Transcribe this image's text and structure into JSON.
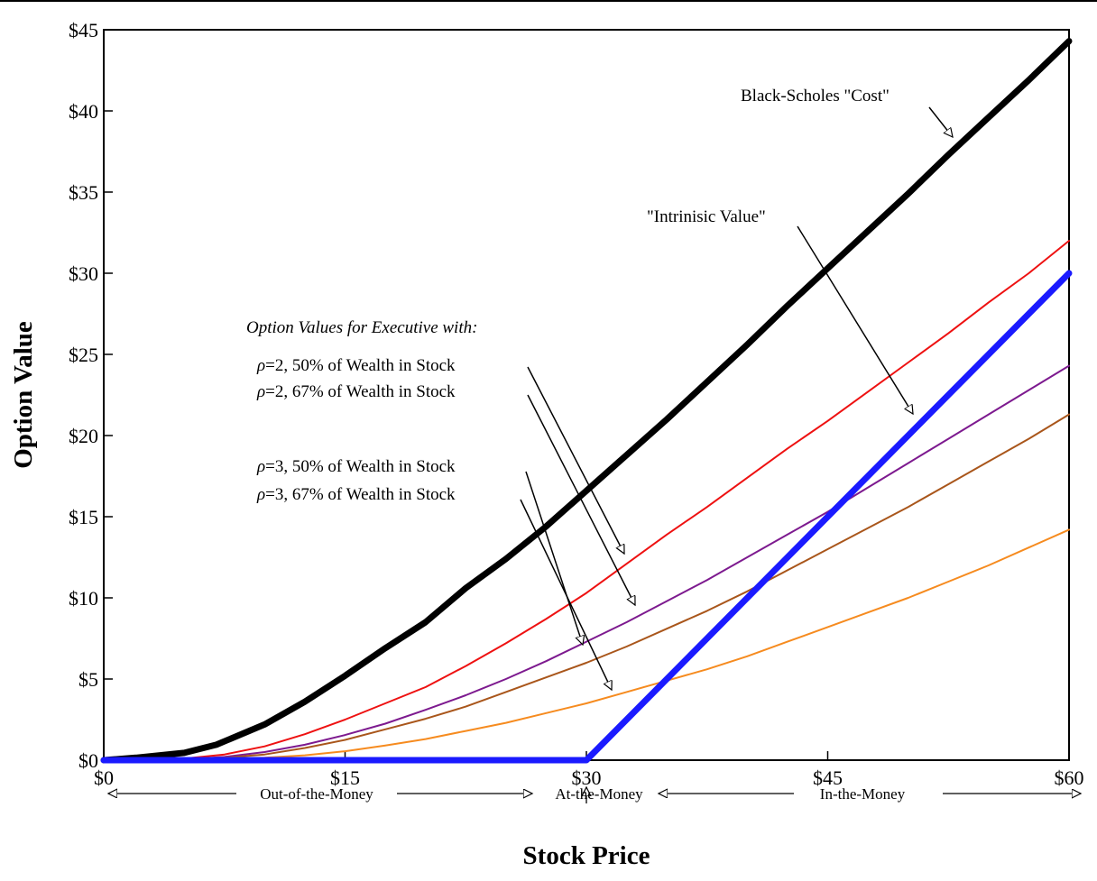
{
  "chart_data": {
    "type": "line",
    "xlabel": "Stock Price",
    "ylabel": "Option Value",
    "xlim": [
      0,
      60
    ],
    "ylim": [
      0,
      45
    ],
    "x_ticks": [
      0,
      15,
      30,
      45,
      60
    ],
    "x_tick_labels": [
      "$0",
      "$15",
      "$30",
      "$45",
      "$60"
    ],
    "y_ticks": [
      0,
      5,
      10,
      15,
      20,
      25,
      30,
      35,
      40,
      45
    ],
    "y_tick_labels": [
      "$0",
      "$5",
      "$10",
      "$15",
      "$20",
      "$25",
      "$30",
      "$35",
      "$40",
      "$45"
    ],
    "grid": false,
    "series": [
      {
        "name": "Black-Scholes \"Cost\"",
        "color": "#000000",
        "width": 7,
        "x": [
          0,
          2,
          5,
          7,
          10,
          12.5,
          15,
          17.5,
          20,
          22.5,
          25,
          27.5,
          30,
          32.5,
          35,
          37.5,
          40,
          42.5,
          45,
          47.5,
          50,
          52.5,
          55,
          57.5,
          60
        ],
        "y": [
          0,
          0.15,
          0.45,
          0.95,
          2.2,
          3.6,
          5.2,
          6.9,
          8.5,
          10.6,
          12.4,
          14.4,
          16.6,
          18.8,
          21,
          23.3,
          25.6,
          28,
          30.3,
          32.6,
          34.9,
          37.3,
          39.6,
          41.9,
          44.3
        ]
      },
      {
        "name": "\"Intrinisic Value\"",
        "color": "#1a1aff",
        "width": 7,
        "x": [
          0,
          30,
          60
        ],
        "y": [
          0,
          0,
          30
        ]
      },
      {
        "name": "ρ=2, 50% of Wealth in Stock",
        "color": "#ee1111",
        "width": 2,
        "x": [
          0,
          5,
          7.5,
          10,
          12.5,
          15,
          17.5,
          20,
          22.5,
          25,
          27.5,
          30,
          32.5,
          35,
          37.5,
          40,
          42.5,
          45,
          47.5,
          50,
          52.5,
          55,
          57.5,
          60
        ],
        "y": [
          0,
          0.1,
          0.35,
          0.85,
          1.6,
          2.5,
          3.5,
          4.5,
          5.8,
          7.2,
          8.7,
          10.3,
          12.1,
          13.9,
          15.6,
          17.4,
          19.2,
          20.9,
          22.7,
          24.5,
          26.3,
          28.2,
          30,
          32
        ]
      },
      {
        "name": "ρ=2, 67% of Wealth in Stock",
        "color": "#7d1a8f",
        "width": 2,
        "x": [
          0,
          5,
          7.5,
          10,
          12.5,
          15,
          17.5,
          20,
          22.5,
          25,
          27.5,
          30,
          32.5,
          35,
          37.5,
          40,
          42.5,
          45,
          47.5,
          50,
          52.5,
          55,
          57.5,
          60
        ],
        "y": [
          0,
          0.05,
          0.2,
          0.5,
          0.95,
          1.55,
          2.25,
          3.1,
          4,
          5,
          6.1,
          7.3,
          8.5,
          9.8,
          11.1,
          12.5,
          13.9,
          15.3,
          16.8,
          18.3,
          19.8,
          21.3,
          22.8,
          24.3
        ]
      },
      {
        "name": "ρ=3, 50% of Wealth in Stock",
        "color": "#a9561b",
        "width": 2,
        "x": [
          0,
          5,
          7.5,
          10,
          12.5,
          15,
          17.5,
          20,
          22.5,
          25,
          27.5,
          30,
          32.5,
          35,
          37.5,
          40,
          42.5,
          45,
          47.5,
          50,
          52.5,
          55,
          57.5,
          60
        ],
        "y": [
          0,
          0.05,
          0.15,
          0.35,
          0.75,
          1.25,
          1.9,
          2.55,
          3.3,
          4.2,
          5.1,
          6,
          7,
          8.1,
          9.2,
          10.4,
          11.7,
          13,
          14.3,
          15.6,
          17,
          18.4,
          19.8,
          21.3
        ]
      },
      {
        "name": "ρ=3, 67% of Wealth in Stock",
        "color": "#f68b1f",
        "width": 2,
        "x": [
          0,
          5,
          7.5,
          10,
          12.5,
          15,
          17.5,
          20,
          22.5,
          25,
          27.5,
          30,
          32.5,
          35,
          37.5,
          40,
          42.5,
          45,
          47.5,
          50,
          52.5,
          55,
          57.5,
          60
        ],
        "y": [
          0,
          0.02,
          0.08,
          0.15,
          0.3,
          0.55,
          0.9,
          1.3,
          1.8,
          2.3,
          2.9,
          3.5,
          4.2,
          4.9,
          5.6,
          6.4,
          7.3,
          8.2,
          9.1,
          10,
          11,
          12,
          13.1,
          14.2
        ]
      }
    ],
    "annotations": {
      "black_scholes": "Black-Scholes \"Cost\"",
      "intrinsic": "\"Intrinisic Value\"",
      "option_values_header": "Option Values for Executive with:",
      "rho2_50_symbol": "ρ",
      "rho2_50_rest": "=2, 50% of Wealth in Stock",
      "rho2_67_symbol": "ρ",
      "rho2_67_rest": "=2, 67% of Wealth in Stock",
      "rho3_50_symbol": "ρ",
      "rho3_50_rest": "=3, 50% of Wealth in Stock",
      "rho3_67_symbol": "ρ",
      "rho3_67_rest": "=3, 67% of Wealth in Stock"
    },
    "regions": {
      "out_of_money": "Out-of-the-Money",
      "at_money": "At-the-Money",
      "in_money": "In-the-Money"
    }
  }
}
